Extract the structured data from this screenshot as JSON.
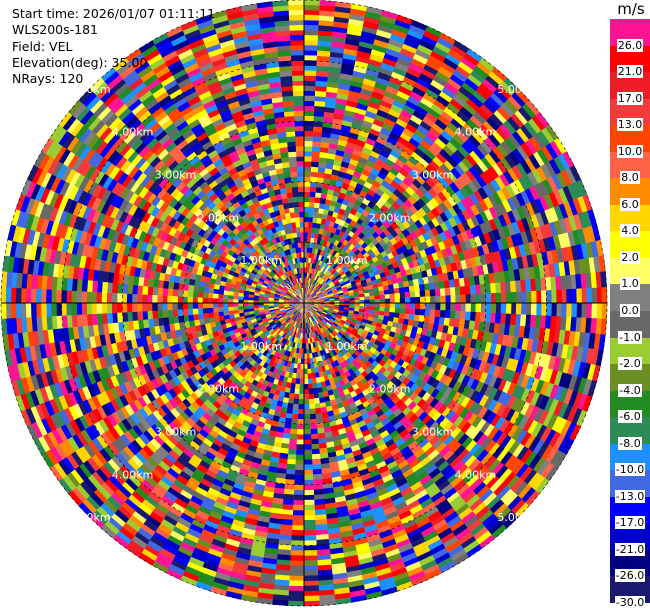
{
  "header": {
    "start_time": "Start time: 2026/01/07 01:11:11",
    "site": "WLS200s-181",
    "field": "Field: VEL",
    "elevation": "Elevation(deg): 35.00",
    "nrays": "NRays: 120"
  },
  "colorbar": {
    "unit": "m/s",
    "levels": [
      {
        "label": "26.0",
        "color": "#ff1493"
      },
      {
        "label": "21.0",
        "color": "#ff0000"
      },
      {
        "label": "17.0",
        "color": "#ee1c24"
      },
      {
        "label": "13.0",
        "color": "#f43b3b"
      },
      {
        "label": "10.0",
        "color": "#ff4500"
      },
      {
        "label": "8.0",
        "color": "#ff6347"
      },
      {
        "label": "6.0",
        "color": "#ff8c00"
      },
      {
        "label": "4.0",
        "color": "#ffd700"
      },
      {
        "label": "2.0",
        "color": "#ffff00"
      },
      {
        "label": "1.0",
        "color": "#ffff66"
      },
      {
        "label": "0.0",
        "color": "#808080"
      },
      {
        "label": "-1.0",
        "color": "#696969"
      },
      {
        "label": "-2.0",
        "color": "#9acd32"
      },
      {
        "label": "-4.0",
        "color": "#6b8e23"
      },
      {
        "label": "-6.0",
        "color": "#228b22"
      },
      {
        "label": "-8.0",
        "color": "#2e8b57"
      },
      {
        "label": "-10.0",
        "color": "#1e90ff"
      },
      {
        "label": "-13.0",
        "color": "#4169e1"
      },
      {
        "label": "-17.0",
        "color": "#0000ff"
      },
      {
        "label": "-21.0",
        "color": "#0000cd"
      },
      {
        "label": "-26.0",
        "color": "#000080"
      },
      {
        "label": "-30.0",
        "color": "#191970"
      }
    ]
  },
  "range_rings": {
    "labels": [
      "1.00km",
      "2.00km",
      "3.00km",
      "4.00km",
      "5.00km"
    ]
  },
  "ppi": {
    "nrays": 120,
    "ngates": 60
  }
}
